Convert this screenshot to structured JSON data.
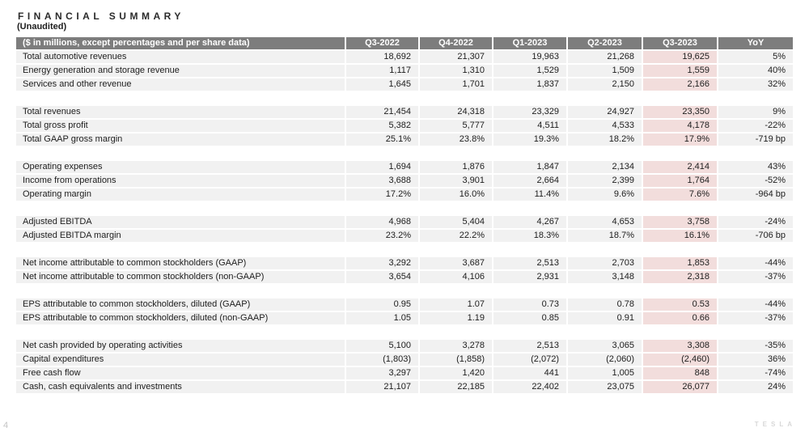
{
  "title": "FINANCIAL SUMMARY",
  "subtitle": "(Unaudited)",
  "page_number": "4",
  "watermark": "TESLA",
  "colors": {
    "header_bg": "#7d7d7d",
    "header_text": "#ffffff",
    "row_bg": "#f1f1f1",
    "highlight_bg": "#f2dddc",
    "text": "#1d1d1d"
  },
  "table": {
    "label_header": "($ in millions, except percentages and per share data)",
    "columns": [
      "Q3-2022",
      "Q4-2022",
      "Q1-2023",
      "Q2-2023",
      "Q3-2023",
      "YoY"
    ],
    "highlight_column": "Q3-2023",
    "sections": [
      {
        "rows": [
          {
            "label": "Total automotive revenues",
            "values": [
              "18,692",
              "21,307",
              "19,963",
              "21,268",
              "19,625",
              "5%"
            ]
          },
          {
            "label": "Energy generation and storage revenue",
            "values": [
              "1,117",
              "1,310",
              "1,529",
              "1,509",
              "1,559",
              "40%"
            ]
          },
          {
            "label": "Services and other revenue",
            "values": [
              "1,645",
              "1,701",
              "1,837",
              "2,150",
              "2,166",
              "32%"
            ]
          }
        ]
      },
      {
        "rows": [
          {
            "label": "Total revenues",
            "values": [
              "21,454",
              "24,318",
              "23,329",
              "24,927",
              "23,350",
              "9%"
            ]
          },
          {
            "label": "Total gross profit",
            "values": [
              "5,382",
              "5,777",
              "4,511",
              "4,533",
              "4,178",
              "-22%"
            ]
          },
          {
            "label": "Total GAAP gross margin",
            "values": [
              "25.1%",
              "23.8%",
              "19.3%",
              "18.2%",
              "17.9%",
              "-719 bp"
            ]
          }
        ]
      },
      {
        "rows": [
          {
            "label": "Operating expenses",
            "values": [
              "1,694",
              "1,876",
              "1,847",
              "2,134",
              "2,414",
              "43%"
            ]
          },
          {
            "label": "Income from operations",
            "values": [
              "3,688",
              "3,901",
              "2,664",
              "2,399",
              "1,764",
              "-52%"
            ]
          },
          {
            "label": "Operating margin",
            "values": [
              "17.2%",
              "16.0%",
              "11.4%",
              "9.6%",
              "7.6%",
              "-964 bp"
            ]
          }
        ]
      },
      {
        "rows": [
          {
            "label": "Adjusted EBITDA",
            "values": [
              "4,968",
              "5,404",
              "4,267",
              "4,653",
              "3,758",
              "-24%"
            ]
          },
          {
            "label": "Adjusted EBITDA margin",
            "values": [
              "23.2%",
              "22.2%",
              "18.3%",
              "18.7%",
              "16.1%",
              "-706 bp"
            ]
          }
        ]
      },
      {
        "rows": [
          {
            "label": "Net income attributable to common stockholders (GAAP)",
            "values": [
              "3,292",
              "3,687",
              "2,513",
              "2,703",
              "1,853",
              "-44%"
            ]
          },
          {
            "label": "Net income attributable to common stockholders (non-GAAP)",
            "values": [
              "3,654",
              "4,106",
              "2,931",
              "3,148",
              "2,318",
              "-37%"
            ]
          }
        ]
      },
      {
        "rows": [
          {
            "label": "EPS attributable to common stockholders, diluted (GAAP)",
            "values": [
              "0.95",
              "1.07",
              "0.73",
              "0.78",
              "0.53",
              "-44%"
            ]
          },
          {
            "label": "EPS attributable to common stockholders, diluted (non-GAAP)",
            "values": [
              "1.05",
              "1.19",
              "0.85",
              "0.91",
              "0.66",
              "-37%"
            ]
          }
        ]
      },
      {
        "rows": [
          {
            "label": "Net cash provided by operating activities",
            "values": [
              "5,100",
              "3,278",
              "2,513",
              "3,065",
              "3,308",
              "-35%"
            ]
          },
          {
            "label": "Capital expenditures",
            "values": [
              "(1,803)",
              "(1,858)",
              "(2,072)",
              "(2,060)",
              "(2,460)",
              "36%"
            ]
          },
          {
            "label": "Free cash flow",
            "values": [
              "3,297",
              "1,420",
              "441",
              "1,005",
              "848",
              "-74%"
            ]
          },
          {
            "label": "Cash, cash equivalents and investments",
            "values": [
              "21,107",
              "22,185",
              "22,402",
              "23,075",
              "26,077",
              "24%"
            ]
          }
        ]
      }
    ]
  }
}
